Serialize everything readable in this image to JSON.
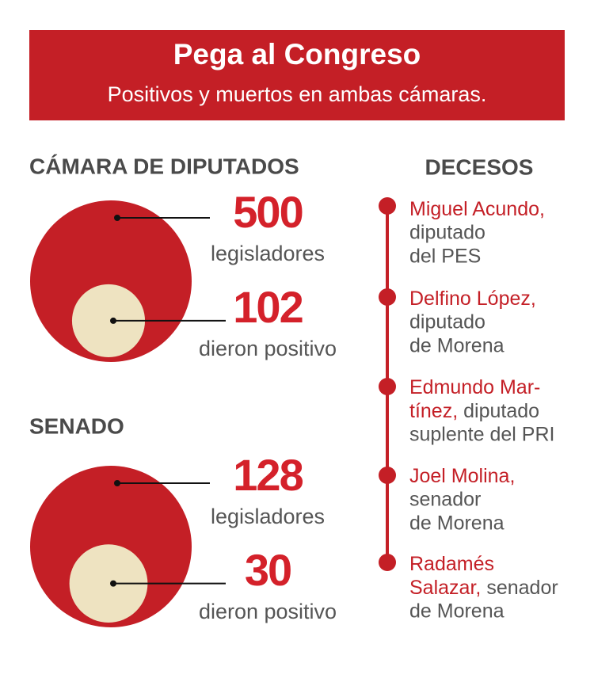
{
  "header": {
    "title": "Pega al Congreso",
    "subtitle": "Positivos y muertos en ambas cámaras."
  },
  "chambers": [
    {
      "name": "CÁMARA DE DIPUTADOS",
      "total": 500,
      "total_label": "legisladores",
      "positive": 102,
      "positive_label": "dieron positivo"
    },
    {
      "name": "SENADO",
      "total": 128,
      "total_label": "legisladores",
      "positive": 30,
      "positive_label": "dieron positivo"
    }
  ],
  "deaths": {
    "title": "DECESOS",
    "entries": [
      {
        "name": [
          "Miguel Acundo,"
        ],
        "role": [
          "diputado",
          "del PES"
        ]
      },
      {
        "name": [
          "Delfino López,"
        ],
        "role": [
          "diputado",
          "de Morena"
        ]
      },
      {
        "name": [
          "Edmundo Mar-",
          "tínez,"
        ],
        "role": [
          "diputado",
          "suplente del PRI"
        ]
      },
      {
        "name": [
          "Joel Molina,"
        ],
        "role": [
          "senador",
          "de Morena"
        ]
      },
      {
        "name": [
          "Radamés",
          "Salazar,"
        ],
        "role": [
          "senador",
          "de Morena"
        ]
      }
    ]
  }
}
